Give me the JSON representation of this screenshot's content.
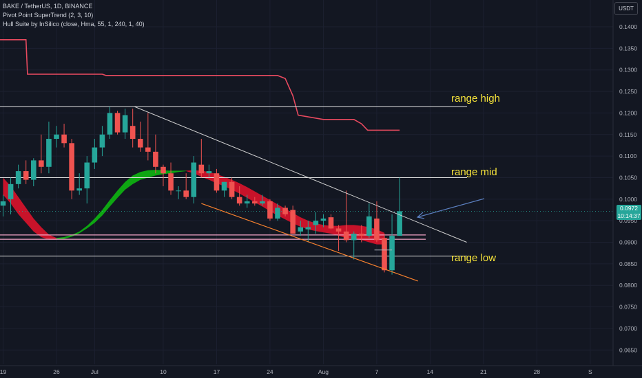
{
  "header": {
    "line1": "BAKE / TetherUS, 1D, BINANCE",
    "line2": "Pivot Point SuperTrend (2, 3, 10)",
    "line3": "Hull Suite by InSilico (close, Hma, 55, 1, 240, 1, 40)"
  },
  "currency": "USDT",
  "price_badge": {
    "price": "0.0972",
    "countdown": "10:14:37"
  },
  "colors": {
    "background": "#131722",
    "up": "#26a69a",
    "down": "#ef5350",
    "supertrend": "#e84a5f",
    "hull_up": "#0ea612",
    "hull_down": "#c8132a",
    "annotation_text": "#f5e23a",
    "channel_lower": "#f7812e",
    "resistance_line": "#cfcfcf",
    "level_line": "#e6e6e6",
    "pink_line": "#f4a6c8",
    "arrow": "#5b7fbf"
  },
  "chart_data": {
    "type": "candlestick",
    "symbol": "BAKE / TetherUS",
    "interval": "1D",
    "exchange": "BINANCE",
    "y_axis_ticks": [
      "0.1400",
      "0.1350",
      "0.1300",
      "0.1250",
      "0.1200",
      "0.1150",
      "0.1100",
      "0.1050",
      "0.1000",
      "0.0950",
      "0.0900",
      "0.0850",
      "0.0800",
      "0.0750",
      "0.0700",
      "0.0650"
    ],
    "y_tick_values": [
      0.14,
      0.135,
      0.13,
      0.125,
      0.12,
      0.115,
      0.11,
      0.105,
      0.1,
      0.095,
      0.09,
      0.085,
      0.08,
      0.075,
      0.07,
      0.065
    ],
    "x_axis_ticks": [
      "19",
      "26",
      "Jul",
      "10",
      "17",
      "24",
      "Aug",
      "7",
      "14",
      "21",
      "28",
      "S"
    ],
    "x_tick_index": [
      0,
      7,
      12,
      21,
      28,
      35,
      42,
      49,
      56,
      63,
      70,
      77
    ],
    "candles": [
      {
        "i": 0,
        "o": 0.0985,
        "h": 0.101,
        "l": 0.096,
        "c": 0.0995
      },
      {
        "i": 1,
        "o": 0.1,
        "h": 0.105,
        "l": 0.0965,
        "c": 0.1035
      },
      {
        "i": 2,
        "o": 0.1035,
        "h": 0.108,
        "l": 0.1025,
        "c": 0.1065
      },
      {
        "i": 3,
        "o": 0.1065,
        "h": 0.109,
        "l": 0.1035,
        "c": 0.1045
      },
      {
        "i": 4,
        "o": 0.1045,
        "h": 0.1095,
        "l": 0.103,
        "c": 0.109
      },
      {
        "i": 5,
        "o": 0.109,
        "h": 0.115,
        "l": 0.106,
        "c": 0.1075
      },
      {
        "i": 6,
        "o": 0.1075,
        "h": 0.118,
        "l": 0.106,
        "c": 0.114
      },
      {
        "i": 7,
        "o": 0.114,
        "h": 0.117,
        "l": 0.112,
        "c": 0.115
      },
      {
        "i": 8,
        "o": 0.115,
        "h": 0.1175,
        "l": 0.112,
        "c": 0.113
      },
      {
        "i": 9,
        "o": 0.113,
        "h": 0.114,
        "l": 0.1,
        "c": 0.102
      },
      {
        "i": 10,
        "o": 0.102,
        "h": 0.106,
        "l": 0.101,
        "c": 0.1025
      },
      {
        "i": 11,
        "o": 0.1025,
        "h": 0.11,
        "l": 0.099,
        "c": 0.1085
      },
      {
        "i": 12,
        "o": 0.1085,
        "h": 0.114,
        "l": 0.107,
        "c": 0.112
      },
      {
        "i": 13,
        "o": 0.112,
        "h": 0.117,
        "l": 0.11,
        "c": 0.115
      },
      {
        "i": 14,
        "o": 0.115,
        "h": 0.1215,
        "l": 0.114,
        "c": 0.12
      },
      {
        "i": 15,
        "o": 0.12,
        "h": 0.1205,
        "l": 0.115,
        "c": 0.1155
      },
      {
        "i": 16,
        "o": 0.1155,
        "h": 0.121,
        "l": 0.114,
        "c": 0.1195
      },
      {
        "i": 17,
        "o": 0.117,
        "h": 0.121,
        "l": 0.112,
        "c": 0.114
      },
      {
        "i": 18,
        "o": 0.114,
        "h": 0.118,
        "l": 0.111,
        "c": 0.112
      },
      {
        "i": 19,
        "o": 0.112,
        "h": 0.12,
        "l": 0.109,
        "c": 0.111
      },
      {
        "i": 20,
        "o": 0.111,
        "h": 0.115,
        "l": 0.106,
        "c": 0.1075
      },
      {
        "i": 21,
        "o": 0.1075,
        "h": 0.108,
        "l": 0.103,
        "c": 0.106
      },
      {
        "i": 22,
        "o": 0.106,
        "h": 0.1085,
        "l": 0.101,
        "c": 0.102
      },
      {
        "i": 23,
        "o": 0.102,
        "h": 0.103,
        "l": 0.1,
        "c": 0.102
      },
      {
        "i": 24,
        "o": 0.102,
        "h": 0.106,
        "l": 0.1,
        "c": 0.1005
      },
      {
        "i": 25,
        "o": 0.1005,
        "h": 0.11,
        "l": 0.099,
        "c": 0.1085
      },
      {
        "i": 26,
        "o": 0.108,
        "h": 0.114,
        "l": 0.105,
        "c": 0.106
      },
      {
        "i": 27,
        "o": 0.106,
        "h": 0.108,
        "l": 0.105,
        "c": 0.1065
      },
      {
        "i": 28,
        "o": 0.106,
        "h": 0.107,
        "l": 0.1015,
        "c": 0.102
      },
      {
        "i": 29,
        "o": 0.102,
        "h": 0.104,
        "l": 0.1005,
        "c": 0.104
      },
      {
        "i": 30,
        "o": 0.104,
        "h": 0.105,
        "l": 0.1,
        "c": 0.1005
      },
      {
        "i": 31,
        "o": 0.1005,
        "h": 0.103,
        "l": 0.0985,
        "c": 0.099
      },
      {
        "i": 32,
        "o": 0.099,
        "h": 0.101,
        "l": 0.098,
        "c": 0.0995
      },
      {
        "i": 33,
        "o": 0.0995,
        "h": 0.1005,
        "l": 0.0985,
        "c": 0.099
      },
      {
        "i": 34,
        "o": 0.099,
        "h": 0.101,
        "l": 0.0985,
        "c": 0.0995
      },
      {
        "i": 35,
        "o": 0.0995,
        "h": 0.1,
        "l": 0.095,
        "c": 0.0955
      },
      {
        "i": 36,
        "o": 0.0955,
        "h": 0.099,
        "l": 0.095,
        "c": 0.098
      },
      {
        "i": 37,
        "o": 0.098,
        "h": 0.0985,
        "l": 0.096,
        "c": 0.0965
      },
      {
        "i": 38,
        "o": 0.0975,
        "h": 0.0985,
        "l": 0.092,
        "c": 0.092
      },
      {
        "i": 39,
        "o": 0.0925,
        "h": 0.095,
        "l": 0.0915,
        "c": 0.0935
      },
      {
        "i": 40,
        "o": 0.093,
        "h": 0.095,
        "l": 0.09,
        "c": 0.0935
      },
      {
        "i": 41,
        "o": 0.094,
        "h": 0.097,
        "l": 0.092,
        "c": 0.095
      },
      {
        "i": 42,
        "o": 0.095,
        "h": 0.0965,
        "l": 0.0935,
        "c": 0.0955
      },
      {
        "i": 43,
        "o": 0.0958,
        "h": 0.0965,
        "l": 0.093,
        "c": 0.0932
      },
      {
        "i": 44,
        "o": 0.0932,
        "h": 0.094,
        "l": 0.088,
        "c": 0.0925
      },
      {
        "i": 45,
        "o": 0.0925,
        "h": 0.102,
        "l": 0.09,
        "c": 0.0905
      },
      {
        "i": 46,
        "o": 0.0905,
        "h": 0.0925,
        "l": 0.086,
        "c": 0.092
      },
      {
        "i": 47,
        "o": 0.092,
        "h": 0.094,
        "l": 0.09,
        "c": 0.0915
      },
      {
        "i": 48,
        "o": 0.0915,
        "h": 0.099,
        "l": 0.091,
        "c": 0.096
      },
      {
        "i": 49,
        "o": 0.0955,
        "h": 0.0995,
        "l": 0.09,
        "c": 0.0905
      },
      {
        "i": 50,
        "o": 0.091,
        "h": 0.092,
        "l": 0.083,
        "c": 0.0835
      },
      {
        "i": 51,
        "o": 0.0835,
        "h": 0.0965,
        "l": 0.0825,
        "c": 0.0915
      },
      {
        "i": 52,
        "o": 0.0915,
        "h": 0.105,
        "l": 0.0915,
        "c": 0.0972
      }
    ]
  },
  "annotations": {
    "range_high": "range high",
    "range_mid": "range mid",
    "range_low": "range low"
  }
}
